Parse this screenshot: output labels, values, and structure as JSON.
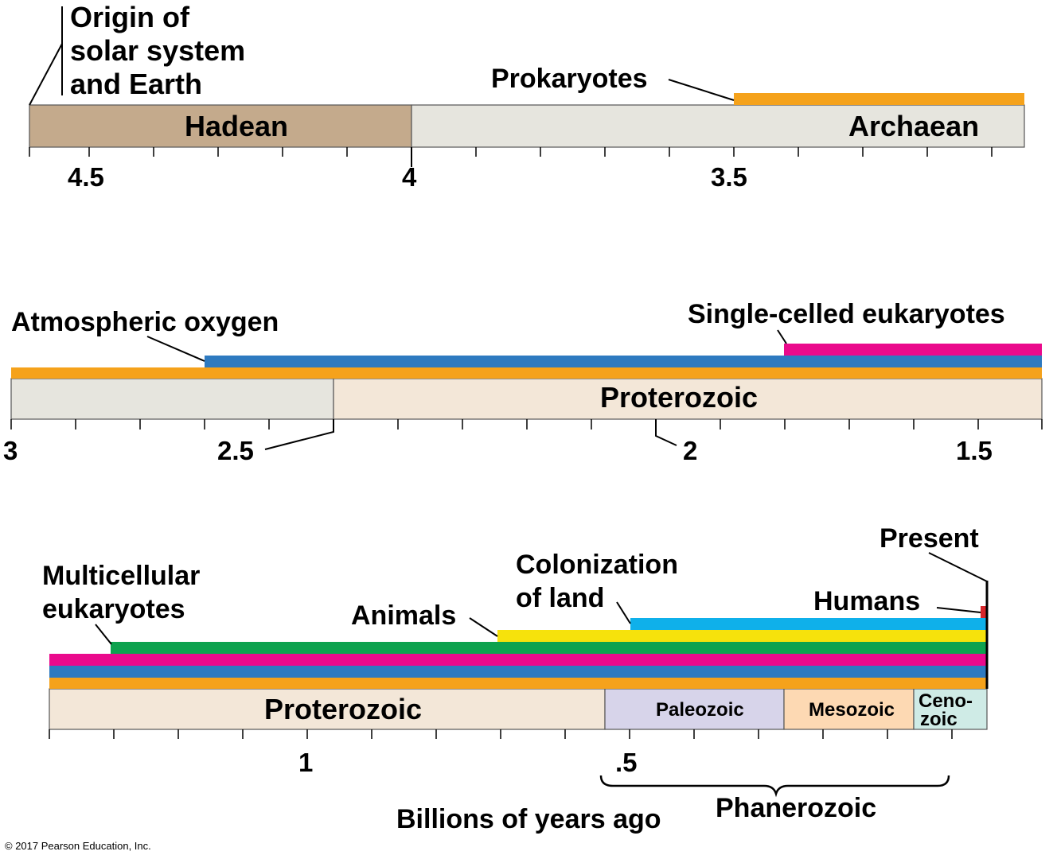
{
  "colors": {
    "prokaryotes": "#f5a21b",
    "oxygen": "#2e7ac0",
    "single_celled": "#ea0a8c",
    "multicellular": "#0ea24f",
    "animals": "#f6e20c",
    "land": "#0fb0ea",
    "humans": "#d7262b",
    "hadean": "#c4aa8c",
    "archaean": "#e6e5de",
    "proterozoic": "#f3e7d8",
    "paleozoic": "#d7d4ea",
    "mesozoic": "#fdd9b3",
    "cenozoic": "#cfebe6"
  },
  "panel1": {
    "origin_line1": "Origin of",
    "origin_line2": "solar system",
    "origin_line3": "and Earth",
    "prokaryotes": "Prokaryotes",
    "hadean": "Hadean",
    "archaean": "Archaean",
    "ticks": [
      "4.5",
      "4",
      "3.5"
    ]
  },
  "panel2": {
    "oxygen": "Atmospheric oxygen",
    "single_celled": "Single-celled eukaryotes",
    "proterozoic": "Proterozoic",
    "ticks": [
      "3",
      "2.5",
      "2",
      "1.5"
    ]
  },
  "panel3": {
    "present": "Present",
    "multicellular_line1": "Multicellular",
    "multicellular_line2": "eukaryotes",
    "colonization_line1": "Colonization",
    "colonization_line2": "of land",
    "humans": "Humans",
    "animals": "Animals",
    "proterozoic": "Proterozoic",
    "paleozoic": "Paleozoic",
    "mesozoic": "Mesozoic",
    "cenozoic_line1": "Ceno-",
    "cenozoic_line2": "zoic",
    "ticks": [
      "1",
      ".5"
    ],
    "phanerozoic": "Phanerozoic",
    "axis_label": "Billions of years ago"
  },
  "copyright": "© 2017 Pearson Education, Inc."
}
